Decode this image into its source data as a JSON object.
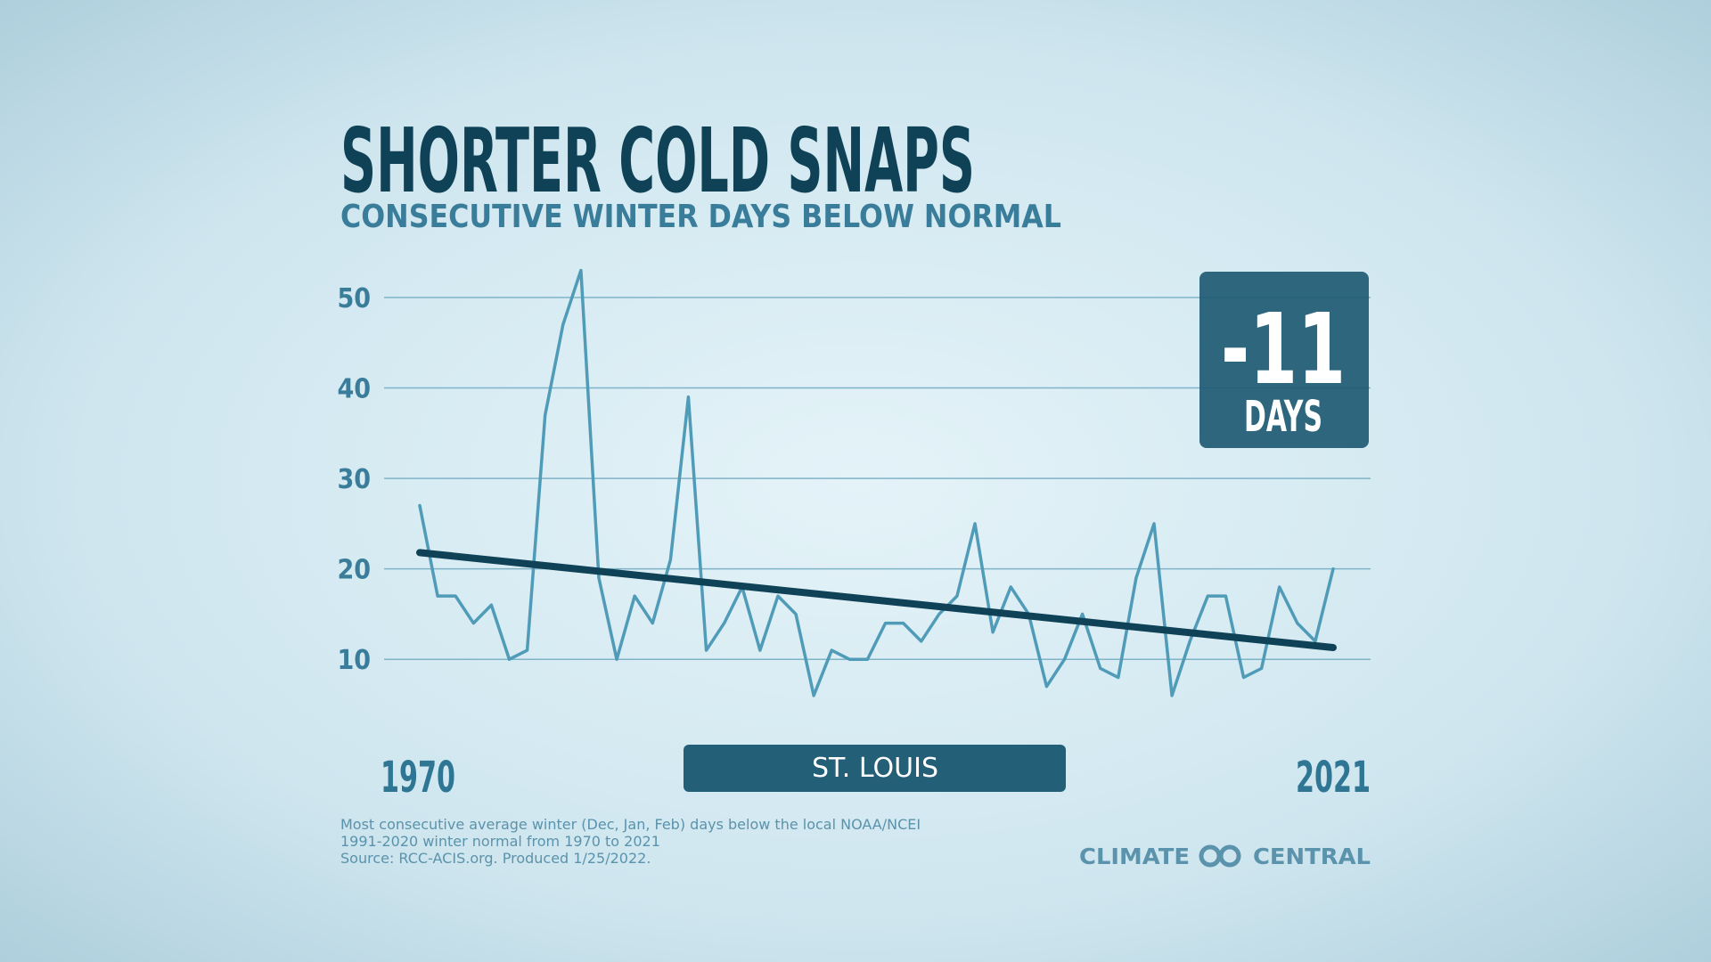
{
  "chart_data": {
    "type": "line",
    "title": "SHORTER COLD SNAPS",
    "subtitle": "CONSECUTIVE WINTER DAYS BELOW NORMAL",
    "location": "ST. LOUIS",
    "callout": {
      "value": -11,
      "unit": "DAYS"
    },
    "x": [
      1970,
      1971,
      1972,
      1973,
      1974,
      1975,
      1976,
      1977,
      1978,
      1979,
      1980,
      1981,
      1982,
      1983,
      1984,
      1985,
      1986,
      1987,
      1988,
      1989,
      1990,
      1991,
      1992,
      1993,
      1994,
      1995,
      1996,
      1997,
      1998,
      1999,
      2000,
      2001,
      2002,
      2003,
      2004,
      2005,
      2006,
      2007,
      2008,
      2009,
      2010,
      2011,
      2012,
      2013,
      2014,
      2015,
      2016,
      2017,
      2018,
      2019,
      2020,
      2021
    ],
    "values": [
      27,
      17,
      17,
      14,
      16,
      10,
      11,
      37,
      47,
      53,
      19,
      10,
      17,
      14,
      21,
      39,
      11,
      14,
      18,
      11,
      17,
      15,
      6,
      11,
      10,
      10,
      14,
      14,
      12,
      15,
      17,
      25,
      13,
      18,
      15,
      7,
      10,
      15,
      9,
      8,
      19,
      25,
      6,
      12,
      17,
      17,
      8,
      9,
      18,
      14,
      12,
      20
    ],
    "color": "#4f9bb8",
    "trend": {
      "x": [
        1970,
        2021
      ],
      "values": [
        21.8,
        11.3
      ],
      "color": "#0f4257"
    },
    "xlim": [
      1970,
      2021
    ],
    "xticks": [
      1970,
      2021
    ],
    "ylim": [
      5,
      53
    ],
    "yticks": [
      10,
      20,
      30,
      40,
      50
    ],
    "grid": true,
    "notes": [
      "Most consecutive average winter (Dec, Jan, Feb) days below the local NOAA/NCEI",
      "1991-2020 winter normal from 1970 to 2021",
      "Source: RCC-ACIS.org. Produced 1/25/2022."
    ],
    "brand": [
      "CLIMATE",
      "CENTRAL"
    ]
  }
}
